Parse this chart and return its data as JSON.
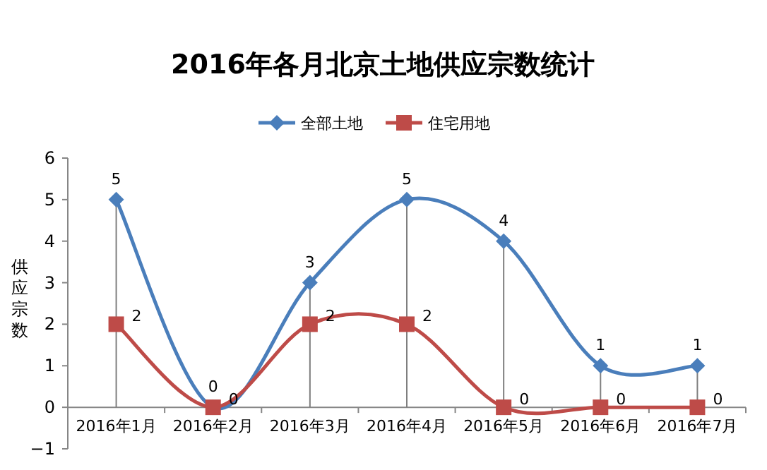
{
  "chart_data": {
    "type": "line",
    "title": "2016年各月北京土地供应宗数统计",
    "ylabel": "供应宗数",
    "categories": [
      "2016年1月",
      "2016年2月",
      "2016年3月",
      "2016年4月",
      "2016年5月",
      "2016年6月",
      "2016年7月"
    ],
    "series": [
      {
        "name": "全部土地",
        "color": "#4a7ebb",
        "values": [
          5,
          0,
          3,
          5,
          4,
          1,
          1
        ],
        "marker": "diamond"
      },
      {
        "name": "住宅用地",
        "color": "#be4b48",
        "values": [
          2,
          0,
          2,
          2,
          0,
          0,
          0
        ],
        "marker": "square"
      }
    ],
    "ylim": [
      -1,
      6
    ],
    "yticks": [
      -1,
      0,
      1,
      2,
      3,
      4,
      5,
      6
    ],
    "data_labels": true,
    "legend": "top",
    "grid": "x",
    "line_style": "solid"
  }
}
